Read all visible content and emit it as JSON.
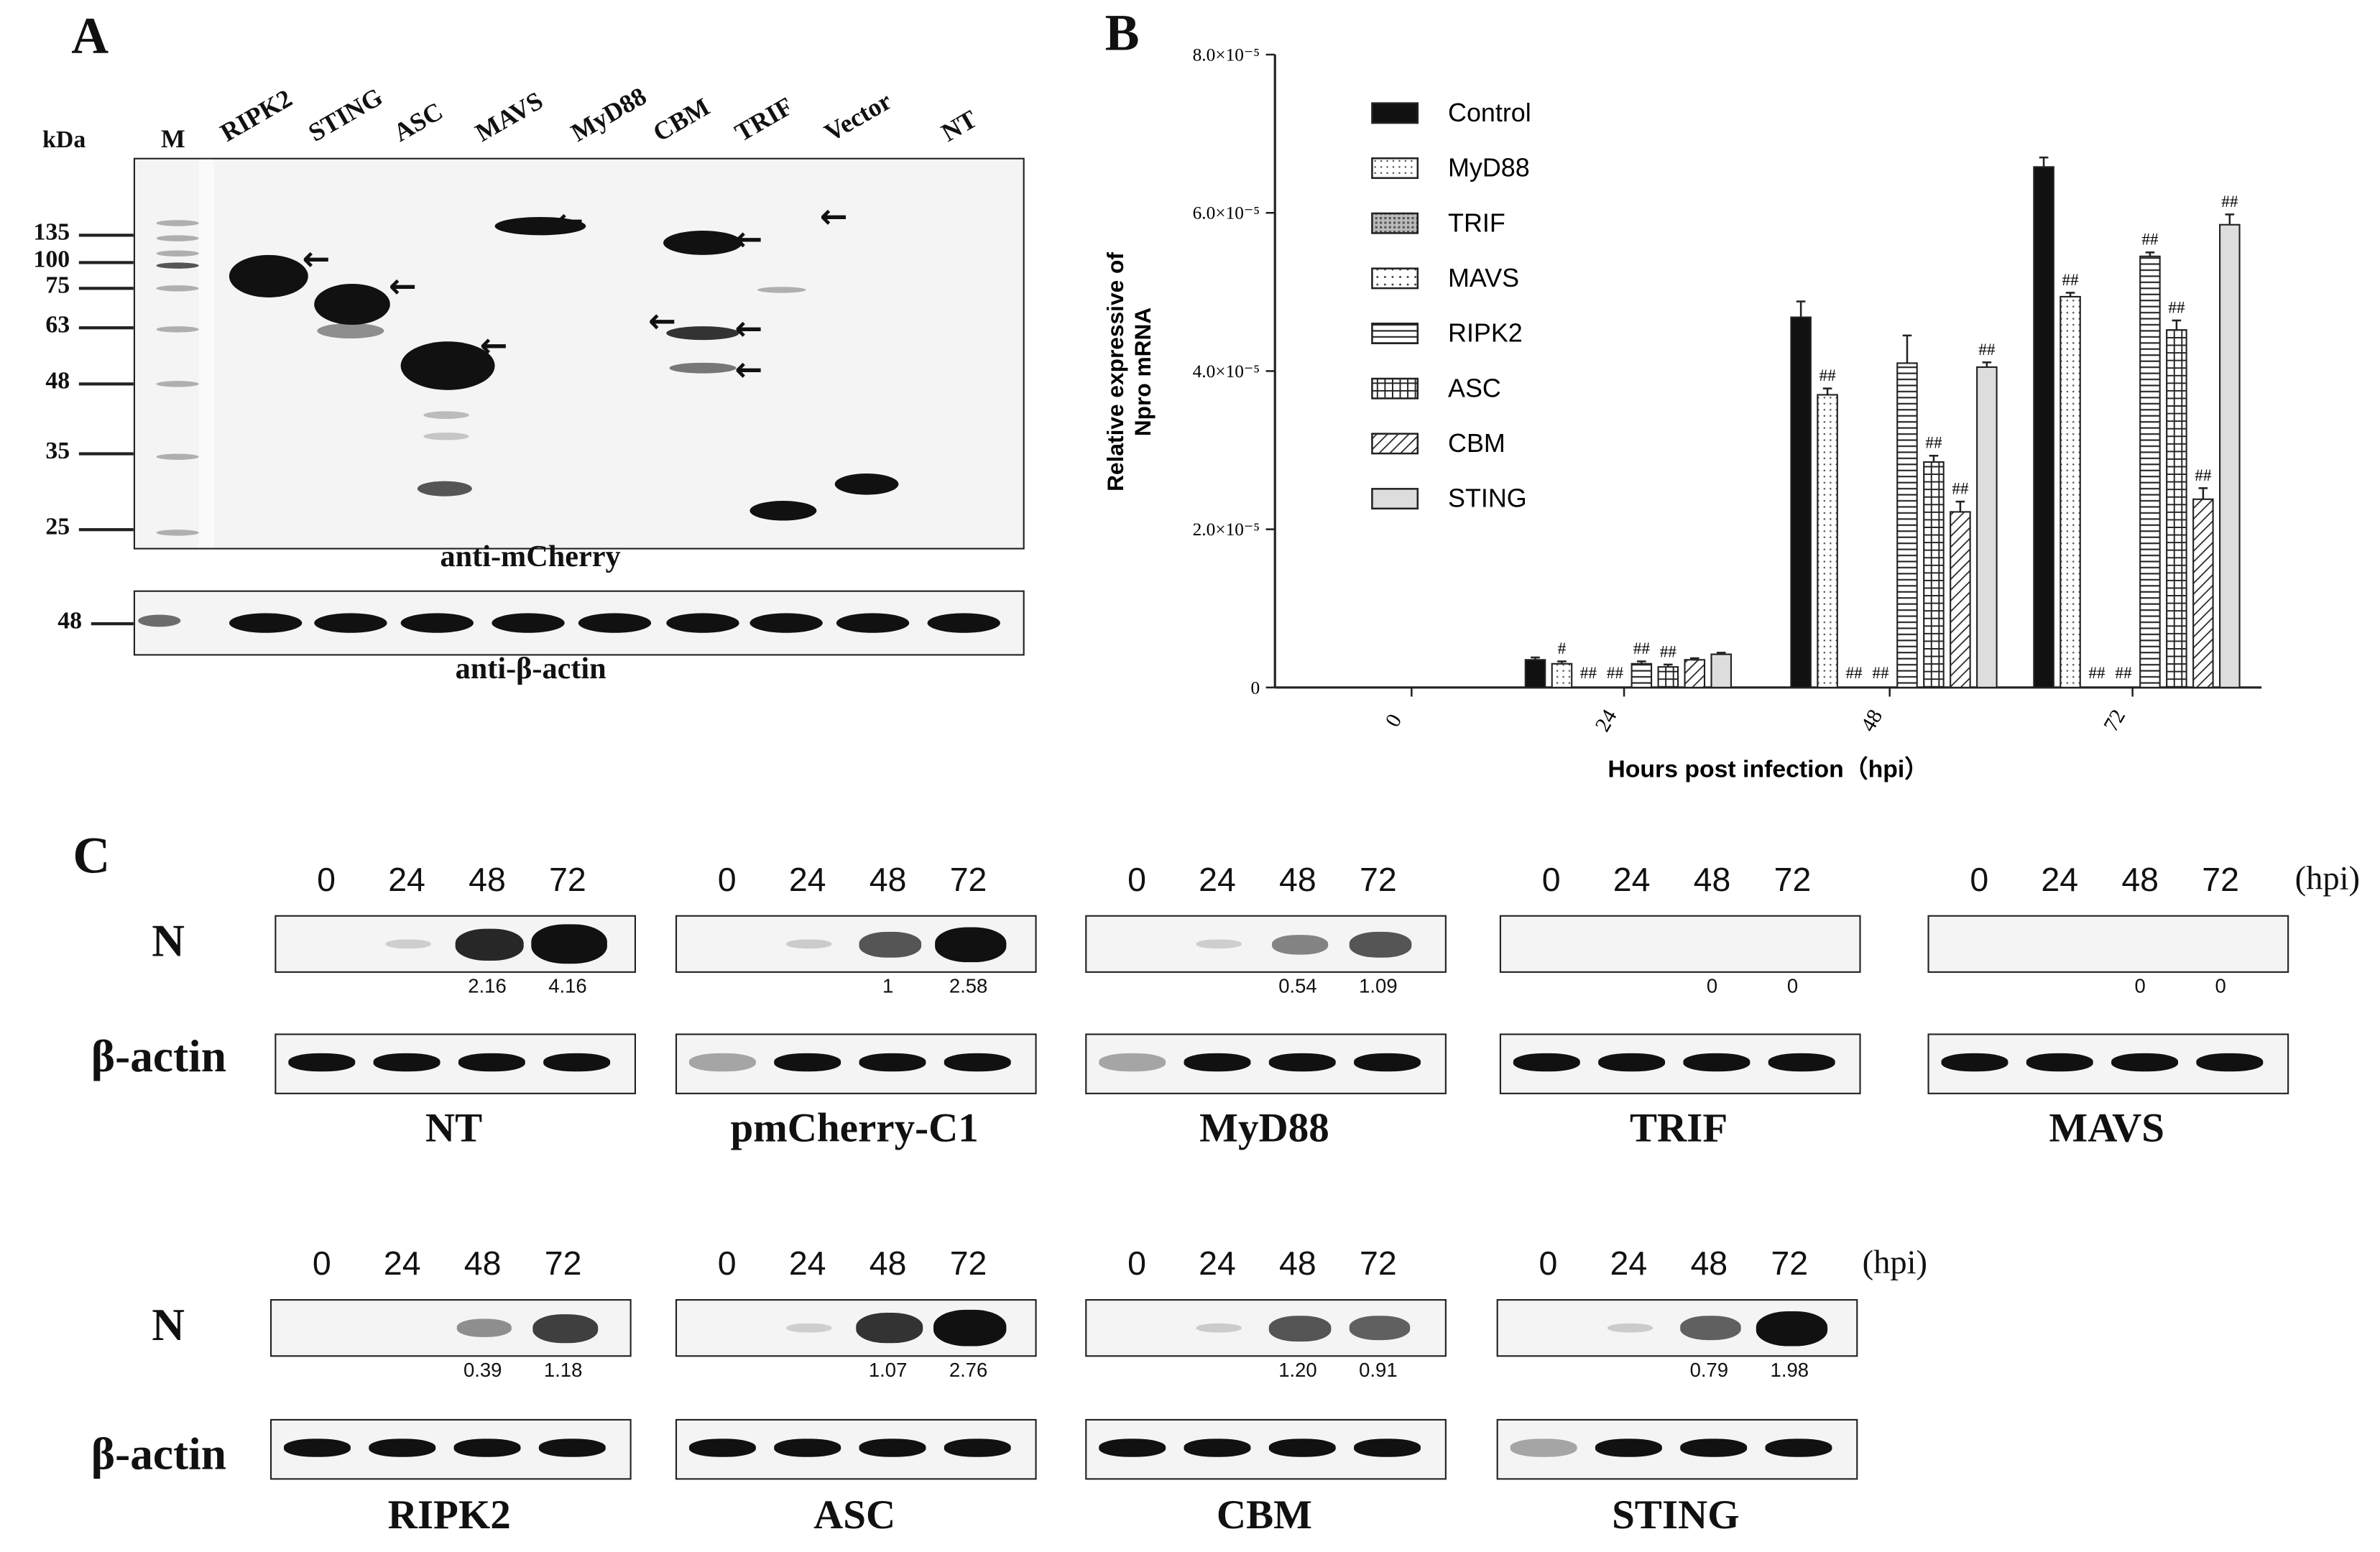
{
  "panelA": {
    "letter": "A",
    "kda": "kDa",
    "lanes": [
      "M",
      "RIPK2",
      "STING",
      "ASC",
      "MAVS",
      "MyD88",
      "CBM",
      "TRIF",
      "Vector",
      "NT"
    ],
    "markers": [
      "135",
      "100",
      "75",
      "63",
      "48",
      "35",
      "25"
    ],
    "antibody_top": "anti-mCherry",
    "antibody_bottom": "anti-β-actin",
    "marker_bottom": "48"
  },
  "chart_data": {
    "type": "bar",
    "title": "",
    "panel_letter": "B",
    "xlabel": "Hours post infection（hpi）",
    "ylabel": [
      "Relative expressive of",
      "Npro mRNA"
    ],
    "categories": [
      "0",
      "24",
      "48",
      "72"
    ],
    "ylim": [
      0,
      8e-05
    ],
    "yticks": [
      0,
      2e-05,
      4e-05,
      6e-05,
      8e-05
    ],
    "ytick_labels": [
      "0",
      "2.0×10⁻⁵",
      "4.0×10⁻⁵",
      "6.0×10⁻⁵",
      "8.0×10⁻⁵"
    ],
    "legend_position": "top-left",
    "grid": false,
    "series": [
      {
        "name": "Control",
        "values": [
          0,
          3.5e-06,
          4.68e-05,
          6.58e-05
        ],
        "errors": [
          0,
          3e-07,
          2e-06,
          1.2e-06
        ]
      },
      {
        "name": "MyD88",
        "values": [
          0,
          3e-06,
          3.7e-05,
          4.94e-05
        ],
        "errors": [
          0,
          3e-07,
          8e-07,
          5e-07
        ]
      },
      {
        "name": "TRIF",
        "values": [
          0,
          0,
          0,
          0
        ],
        "errors": [
          0,
          0,
          0,
          0
        ]
      },
      {
        "name": "MAVS",
        "values": [
          0,
          0,
          0,
          0
        ],
        "errors": [
          0,
          0,
          0,
          0
        ]
      },
      {
        "name": "RIPK2",
        "values": [
          0,
          3e-06,
          4.1e-05,
          5.45e-05
        ],
        "errors": [
          0,
          3e-07,
          3.5e-06,
          5e-07
        ]
      },
      {
        "name": "ASC",
        "values": [
          0,
          2.6e-06,
          2.85e-05,
          4.52e-05
        ],
        "errors": [
          0,
          3e-07,
          8e-07,
          1.2e-06
        ]
      },
      {
        "name": "CBM",
        "values": [
          0,
          3.5e-06,
          2.22e-05,
          2.38e-05
        ],
        "errors": [
          0,
          2e-07,
          1.3e-06,
          1.4e-06
        ]
      },
      {
        "name": "STING",
        "values": [
          0,
          4.2e-06,
          4.05e-05,
          5.85e-05
        ],
        "errors": [
          0,
          2e-07,
          6e-07,
          1.3e-06
        ]
      }
    ],
    "annotations": {
      "24": [
        "",
        "#",
        "##",
        "##",
        "##",
        "##",
        "",
        ""
      ],
      "48": [
        "",
        "##",
        "##",
        "##",
        "",
        "##",
        "##",
        "##"
      ],
      "72": [
        "",
        "##",
        "##",
        "##",
        "##",
        "##",
        "##",
        "##"
      ]
    },
    "annotation_order": [
      "Control",
      "MyD88",
      "TRIF",
      "MAVS",
      "RIPK2",
      "ASC",
      "CBM",
      "STING"
    ],
    "note": "TRIF and MAVS bars are zero; annotated in order TRIF, MAVS ##"
  },
  "panelC": {
    "letter": "C",
    "row_label_n": "N",
    "row_label_actin": "β-actin",
    "time_points": [
      "0",
      "24",
      "48",
      "72"
    ],
    "hpi": "(hpi)",
    "groups_row1": [
      {
        "name": "NT",
        "quant": [
          "",
          "",
          "2.16",
          "4.16"
        ],
        "n": [
          0,
          0.02,
          0.75,
          0.98
        ]
      },
      {
        "name": "pmCherry-C1",
        "quant": [
          "",
          "",
          "1",
          "2.58"
        ],
        "n": [
          0,
          0.03,
          0.55,
          0.85
        ]
      },
      {
        "name": "MyD88",
        "quant": [
          "",
          "",
          "0.54",
          "1.09"
        ],
        "n": [
          0,
          0.02,
          0.35,
          0.55
        ]
      },
      {
        "name": "TRIF",
        "quant": [
          "",
          "",
          "0",
          "0"
        ],
        "n": [
          0,
          0,
          0,
          0
        ]
      },
      {
        "name": "MAVS",
        "quant": [
          "",
          "",
          "0",
          "0"
        ],
        "n": [
          0,
          0,
          0,
          0
        ]
      }
    ],
    "groups_row2": [
      {
        "name": "RIPK2",
        "quant": [
          "",
          "",
          "0.39",
          "1.18"
        ],
        "n": [
          0,
          0,
          0.3,
          0.65
        ]
      },
      {
        "name": "ASC",
        "quant": [
          "",
          "",
          "1.07",
          "2.76"
        ],
        "n": [
          0,
          0.02,
          0.7,
          0.9
        ]
      },
      {
        "name": "CBM",
        "quant": [
          "",
          "",
          "1.20",
          "0.91"
        ],
        "n": [
          0,
          0.03,
          0.55,
          0.5
        ]
      },
      {
        "name": "STING",
        "quant": [
          "",
          "",
          "0.79",
          "1.98"
        ],
        "n": [
          0,
          0.03,
          0.5,
          0.85
        ]
      }
    ]
  }
}
